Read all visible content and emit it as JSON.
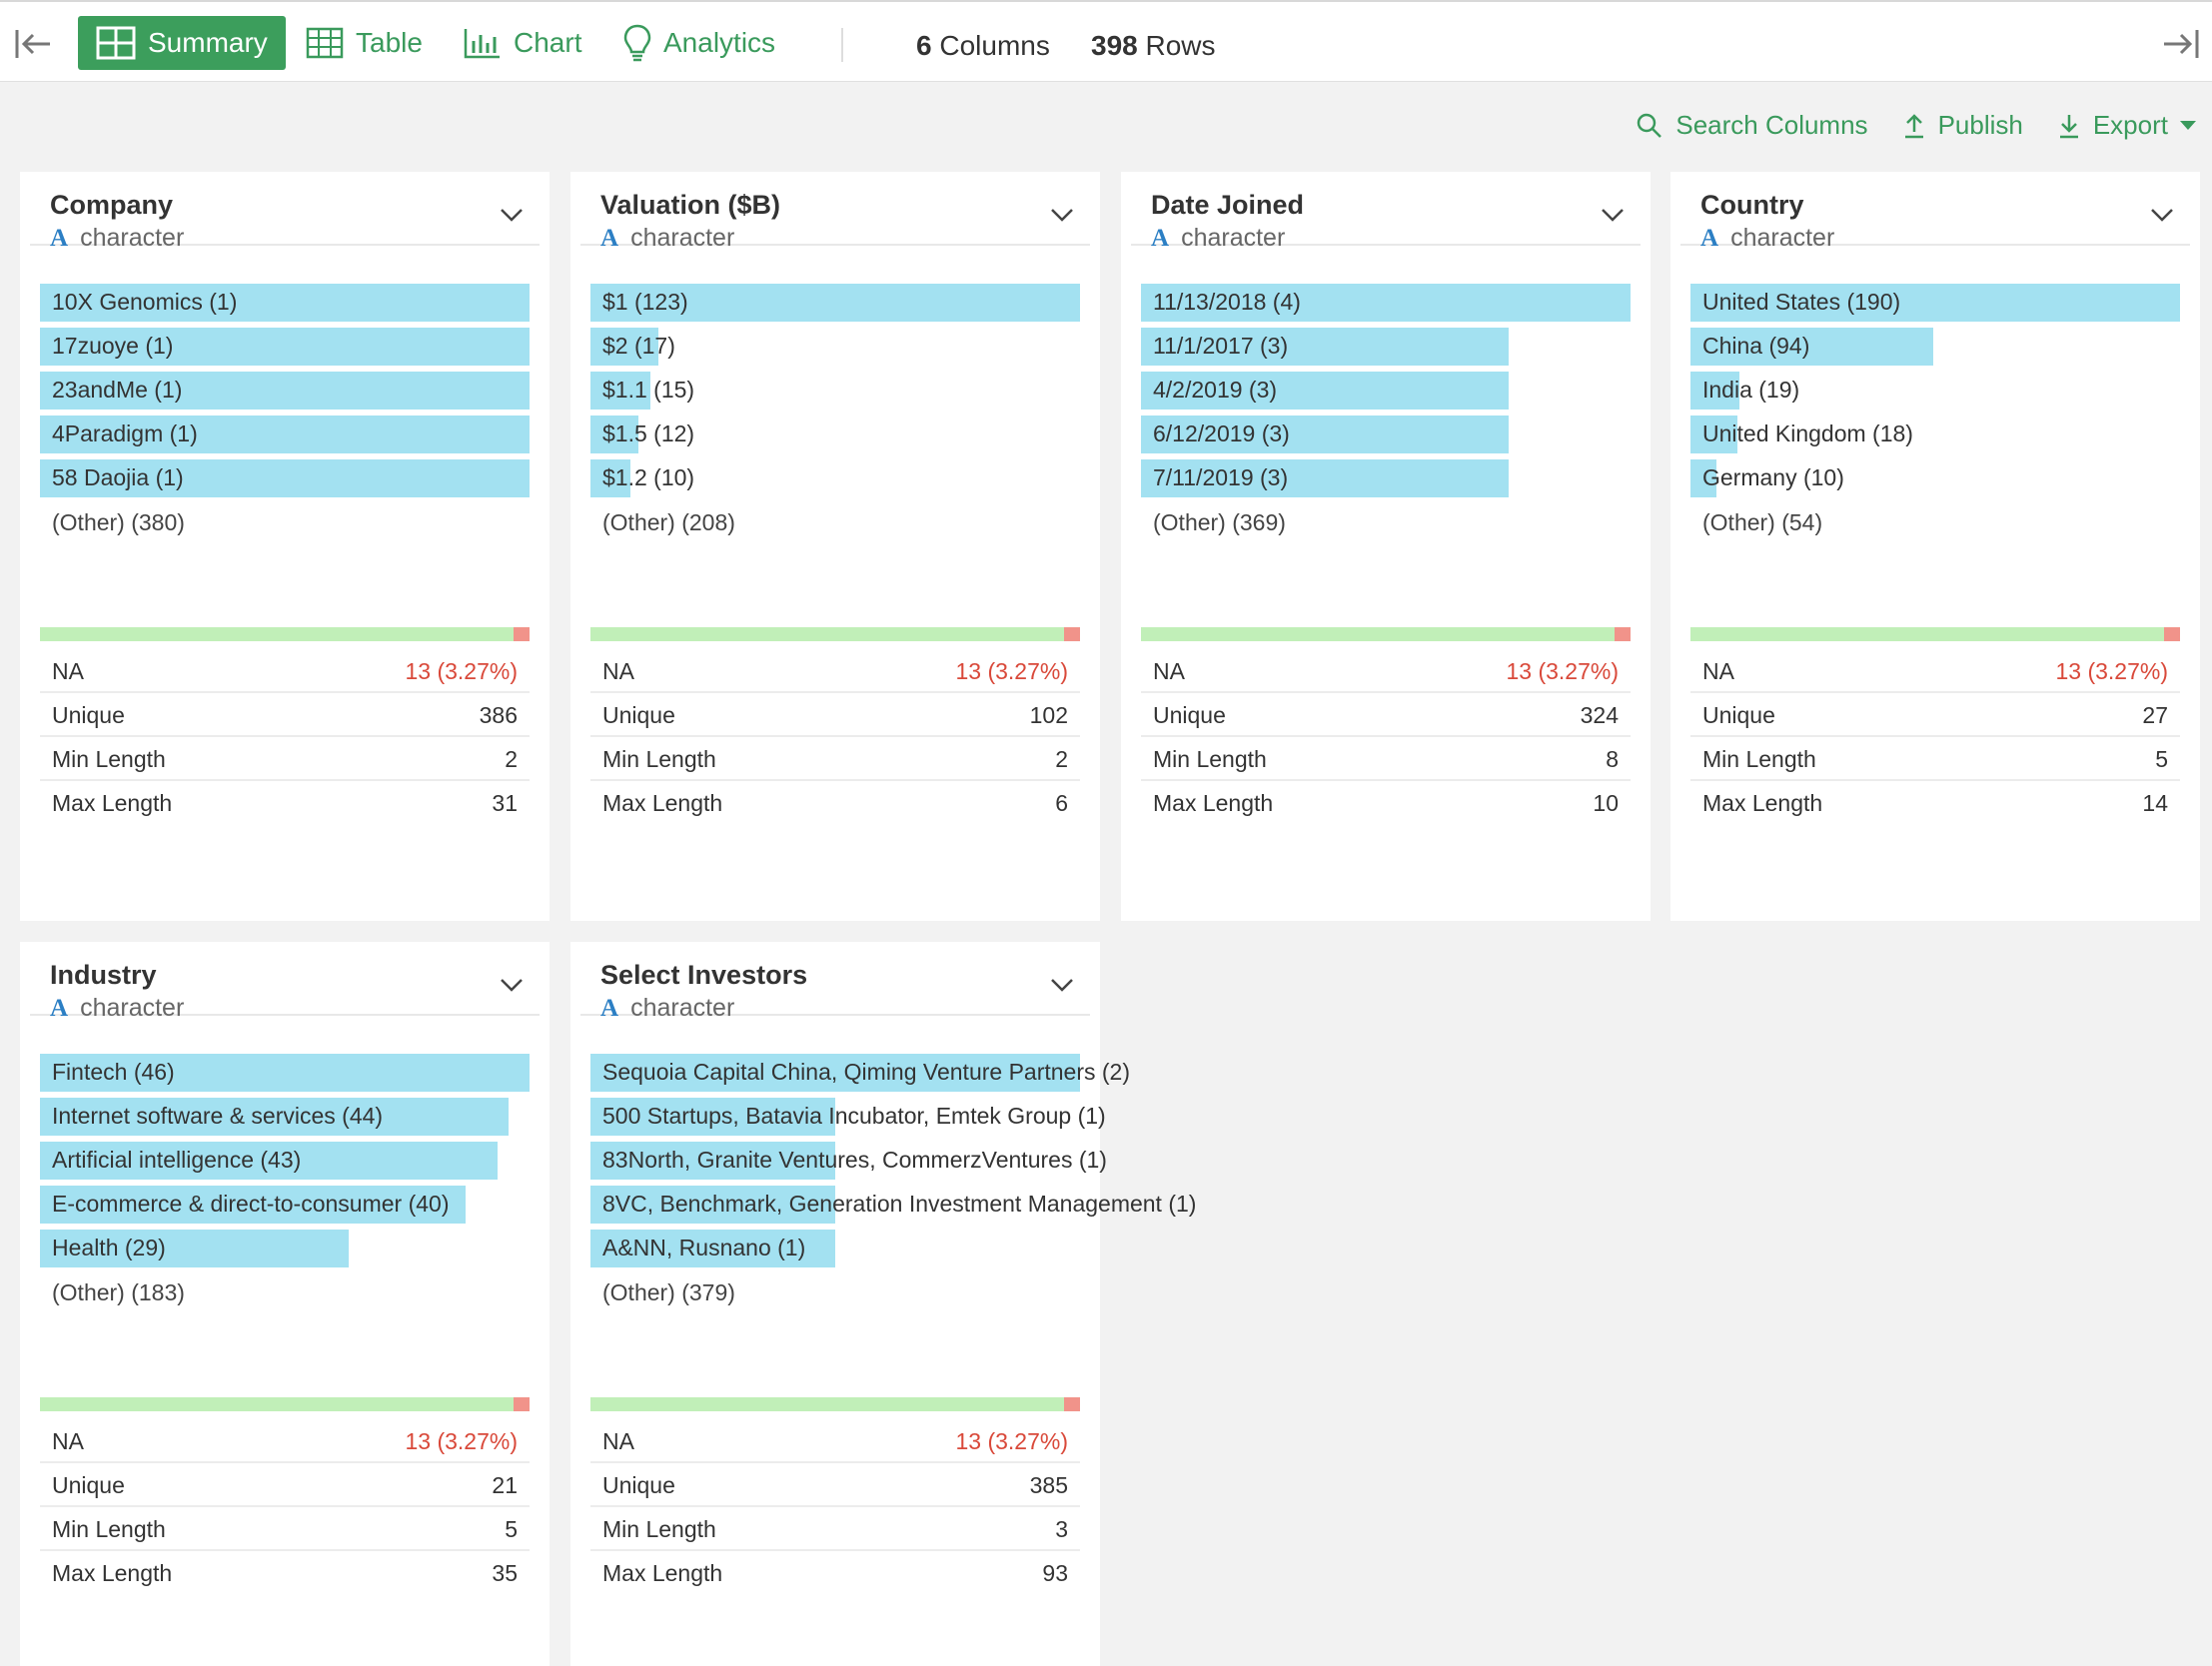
{
  "tabs": [
    {
      "label": "Summary",
      "icon": "summary-grid-icon"
    },
    {
      "label": "Table",
      "icon": "table-icon"
    },
    {
      "label": "Chart",
      "icon": "bar-chart-icon"
    },
    {
      "label": "Analytics",
      "icon": "lightbulb-icon"
    }
  ],
  "stats": {
    "columns_num": "6",
    "columns_label": "Columns",
    "rows_num": "398",
    "rows_label": "Rows"
  },
  "actions": {
    "search": "Search Columns",
    "publish": "Publish",
    "export": "Export"
  },
  "colors": {
    "accent": "#3c9e5c",
    "bar": "#a3e1f1",
    "na_ok": "#c1efb8",
    "na_missing": "#f1938a",
    "na_text": "#d9493a"
  },
  "cards": [
    {
      "title": "Company",
      "type": "character",
      "bars": [
        {
          "label": "10X Genomics (1)",
          "frac": 1.0
        },
        {
          "label": "17zuoye (1)",
          "frac": 1.0
        },
        {
          "label": "23andMe (1)",
          "frac": 1.0
        },
        {
          "label": "4Paradigm (1)",
          "frac": 1.0
        },
        {
          "label": "58 Daojia (1)",
          "frac": 1.0
        }
      ],
      "other": "(Other) (380)",
      "na_frac": 0.0327,
      "stats": [
        {
          "k": "NA",
          "v": "13 (3.27%)"
        },
        {
          "k": "Unique",
          "v": "386"
        },
        {
          "k": "Min Length",
          "v": "2"
        },
        {
          "k": "Max Length",
          "v": "31"
        }
      ]
    },
    {
      "title": "Valuation ($B)",
      "type": "character",
      "bars": [
        {
          "label": "$1 (123)",
          "frac": 1.0
        },
        {
          "label": "$2 (17)",
          "frac": 0.138
        },
        {
          "label": "$1.1 (15)",
          "frac": 0.122
        },
        {
          "label": "$1.5 (12)",
          "frac": 0.098
        },
        {
          "label": "$1.2 (10)",
          "frac": 0.081
        }
      ],
      "other": "(Other) (208)",
      "na_frac": 0.0327,
      "stats": [
        {
          "k": "NA",
          "v": "13 (3.27%)"
        },
        {
          "k": "Unique",
          "v": "102"
        },
        {
          "k": "Min Length",
          "v": "2"
        },
        {
          "k": "Max Length",
          "v": "6"
        }
      ]
    },
    {
      "title": "Date Joined",
      "type": "character",
      "bars": [
        {
          "label": "11/13/2018 (4)",
          "frac": 1.0
        },
        {
          "label": "11/1/2017 (3)",
          "frac": 0.75
        },
        {
          "label": "4/2/2019 (3)",
          "frac": 0.75
        },
        {
          "label": "6/12/2019 (3)",
          "frac": 0.75
        },
        {
          "label": "7/11/2019 (3)",
          "frac": 0.75
        }
      ],
      "other": "(Other) (369)",
      "na_frac": 0.0327,
      "stats": [
        {
          "k": "NA",
          "v": "13 (3.27%)"
        },
        {
          "k": "Unique",
          "v": "324"
        },
        {
          "k": "Min Length",
          "v": "8"
        },
        {
          "k": "Max Length",
          "v": "10"
        }
      ]
    },
    {
      "title": "Country",
      "type": "character",
      "bars": [
        {
          "label": "United States (190)",
          "frac": 1.0
        },
        {
          "label": "China (94)",
          "frac": 0.495
        },
        {
          "label": "India (19)",
          "frac": 0.1
        },
        {
          "label": "United Kingdom (18)",
          "frac": 0.095
        },
        {
          "label": "Germany (10)",
          "frac": 0.053
        }
      ],
      "other": "(Other) (54)",
      "na_frac": 0.0327,
      "stats": [
        {
          "k": "NA",
          "v": "13 (3.27%)"
        },
        {
          "k": "Unique",
          "v": "27"
        },
        {
          "k": "Min Length",
          "v": "5"
        },
        {
          "k": "Max Length",
          "v": "14"
        }
      ]
    },
    {
      "title": "Industry",
      "type": "character",
      "bars": [
        {
          "label": "Fintech (46)",
          "frac": 1.0
        },
        {
          "label": "Internet software & services (44)",
          "frac": 0.957
        },
        {
          "label": "Artificial intelligence (43)",
          "frac": 0.935
        },
        {
          "label": "E-commerce & direct-to-consumer (40)",
          "frac": 0.87
        },
        {
          "label": "Health (29)",
          "frac": 0.63
        }
      ],
      "other": "(Other) (183)",
      "na_frac": 0.0327,
      "stats": [
        {
          "k": "NA",
          "v": "13 (3.27%)"
        },
        {
          "k": "Unique",
          "v": "21"
        },
        {
          "k": "Min Length",
          "v": "5"
        },
        {
          "k": "Max Length",
          "v": "35"
        }
      ]
    },
    {
      "title": "Select Investors",
      "type": "character",
      "bars": [
        {
          "label": "Sequoia Capital China, Qiming Venture Partners (2)",
          "frac": 1.0
        },
        {
          "label": "500 Startups, Batavia Incubator, Emtek Group (1)",
          "frac": 0.5
        },
        {
          "label": "83North, Granite Ventures, CommerzVentures (1)",
          "frac": 0.5
        },
        {
          "label": "8VC, Benchmark, Generation Investment Management (1)",
          "frac": 0.5
        },
        {
          "label": "A&NN, Rusnano (1)",
          "frac": 0.5
        }
      ],
      "other": "(Other) (379)",
      "na_frac": 0.0327,
      "stats": [
        {
          "k": "NA",
          "v": "13 (3.27%)"
        },
        {
          "k": "Unique",
          "v": "385"
        },
        {
          "k": "Min Length",
          "v": "3"
        },
        {
          "k": "Max Length",
          "v": "93"
        }
      ]
    }
  ]
}
